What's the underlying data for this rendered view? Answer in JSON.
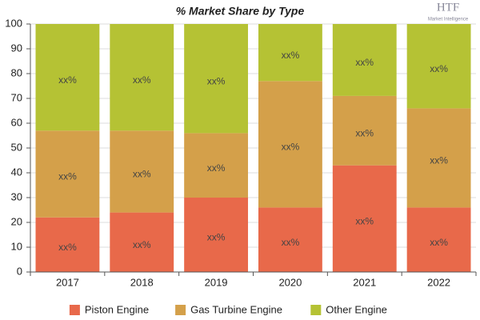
{
  "chart_data": {
    "type": "stacked-bar",
    "title": "% Market Share by Type",
    "categories": [
      "2017",
      "2018",
      "2019",
      "2020",
      "2021",
      "2022"
    ],
    "series": [
      {
        "name": "Piston Engine",
        "color": "#e8694a",
        "values": [
          22,
          24,
          30,
          26,
          43,
          26
        ],
        "value_labels": [
          "xx%",
          "xx%",
          "xx%",
          "xx%",
          "xx%",
          "xx%"
        ]
      },
      {
        "name": "Gas Turbine Engine",
        "color": "#d4a04a",
        "values": [
          35,
          33,
          26,
          51,
          28,
          40
        ],
        "value_labels": [
          "xx%",
          "xx%",
          "xx%",
          "xx%",
          "xx%",
          "xx%"
        ]
      },
      {
        "name": "Other Engine",
        "color": "#b5c234",
        "values": [
          43,
          43,
          44,
          23,
          29,
          34
        ],
        "value_labels": [
          "xx%",
          "xx%",
          "xx%",
          "xx%",
          "xx%",
          "xx%"
        ]
      }
    ],
    "ylim": [
      0,
      100
    ],
    "yticks": [
      0,
      10,
      20,
      30,
      40,
      50,
      60,
      70,
      80,
      90,
      100
    ],
    "grid": true,
    "legend": "bottom"
  },
  "logo": {
    "name": "HTF",
    "tagline": "Market Intelligence"
  }
}
